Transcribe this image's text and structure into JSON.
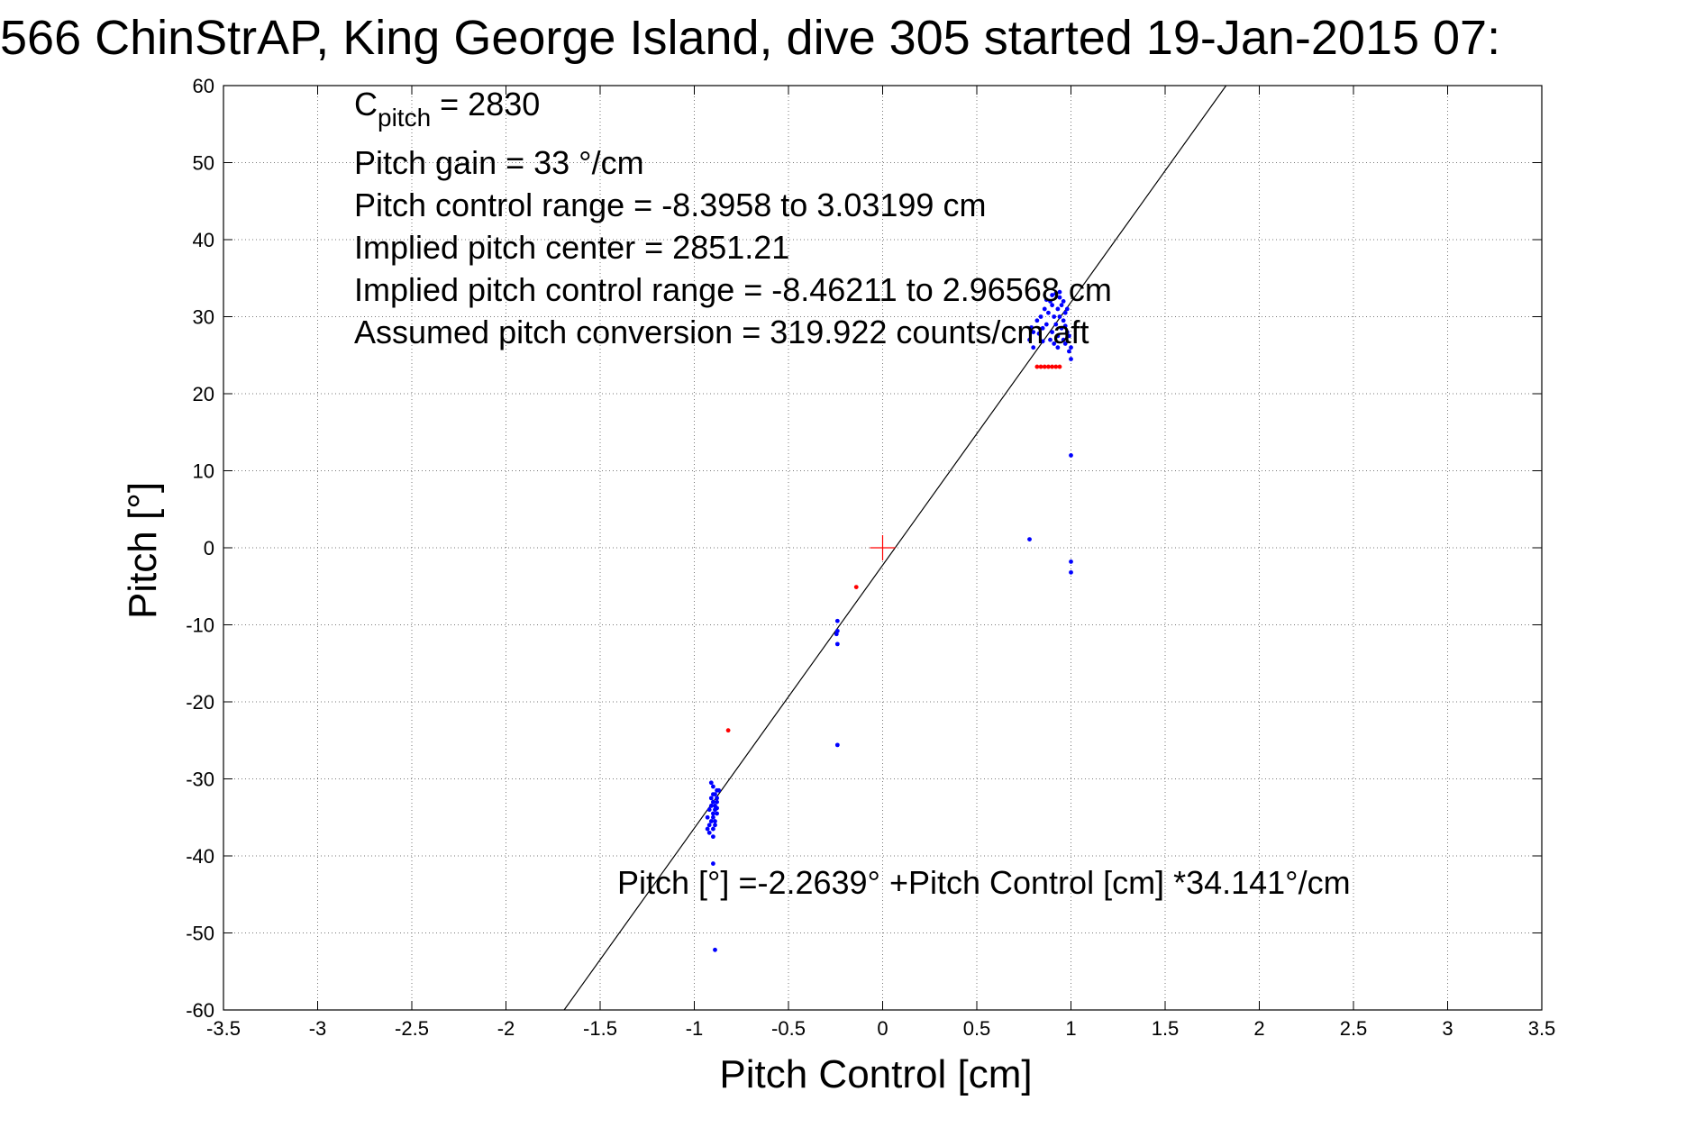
{
  "chart_data": {
    "type": "scatter",
    "title": "566 ChinStrAP, King George Island, dive 305 started 19-Jan-2015 07:",
    "xlabel": "Pitch Control [cm]",
    "ylabel": "Pitch [°]",
    "xlim": [
      -3.5,
      3.5
    ],
    "ylim": [
      -60,
      60
    ],
    "xticks": [
      -3.5,
      -3,
      -2.5,
      -2,
      -1.5,
      -1,
      -0.5,
      0,
      0.5,
      1,
      1.5,
      2,
      2.5,
      3,
      3.5
    ],
    "xtick_labels": [
      "-3.5",
      "-3",
      "-2.5",
      "-2",
      "-1.5",
      "-1",
      "-0.5",
      "0",
      "0.5",
      "1",
      "1.5",
      "2",
      "2.5",
      "3",
      "3.5"
    ],
    "yticks": [
      60,
      50,
      40,
      30,
      20,
      10,
      0,
      -10,
      -20,
      -30,
      -40,
      -50,
      -60
    ],
    "ytick_labels": [
      "60",
      "50",
      "40",
      "30",
      "20",
      "10",
      "0",
      "-10",
      "-20",
      "-30",
      "-40",
      "-50",
      "-60"
    ],
    "grid": true,
    "colors": {
      "good": "#0000ff",
      "bad": "#ff0000",
      "fit": "#000000",
      "center": "#ff0000"
    },
    "annotations": {
      "c_pitch_base": "C",
      "c_pitch_sub": "pitch",
      "c_pitch_value": " = 2830",
      "pitch_gain": "Pitch gain = 33 °/cm",
      "control_range": "Pitch control range = -8.3958 to 3.03199 cm",
      "implied_center": "Implied pitch center = 2851.21",
      "implied_range": "Implied pitch control range = -8.46211 to 2.96568 cm",
      "assumed_conversion": "Assumed pitch conversion = 319.922 counts/cm aft",
      "fit_equation": "Pitch [°] =-2.2639° +Pitch Control [cm] *34.141°/cm"
    },
    "fit": {
      "intercept": -2.2639,
      "slope": 34.141
    },
    "center_marker": {
      "x": 0,
      "y": 0
    },
    "series": [
      {
        "name": "",
        "points": [
          [
            -0.9,
            -31
          ],
          [
            -0.89,
            -32
          ],
          [
            -0.88,
            -31.5
          ],
          [
            -0.91,
            -32.5
          ],
          [
            -0.9,
            -33
          ],
          [
            -0.89,
            -33.5
          ],
          [
            -0.92,
            -34
          ],
          [
            -0.9,
            -34.5
          ],
          [
            -0.88,
            -33
          ],
          [
            -0.93,
            -35
          ],
          [
            -0.91,
            -35.5
          ],
          [
            -0.89,
            -36
          ],
          [
            -0.9,
            -36.5
          ],
          [
            -0.92,
            -37
          ],
          [
            -0.88,
            -32.5
          ],
          [
            -0.9,
            -37.5
          ],
          [
            -0.89,
            -34
          ],
          [
            -0.91,
            -33.5
          ],
          [
            -0.87,
            -31.5
          ],
          [
            -0.9,
            -35
          ],
          [
            -0.88,
            -34.5
          ],
          [
            -0.92,
            -36
          ],
          [
            -0.91,
            -30.5
          ],
          [
            -0.89,
            -35.5
          ],
          [
            -0.9,
            -32
          ],
          [
            -0.93,
            -36.5
          ],
          [
            -0.88,
            -33.8
          ],
          [
            -0.9,
            -41
          ],
          [
            -0.89,
            -52.2
          ],
          [
            -0.24,
            -9.5
          ],
          [
            -0.24,
            -10.8
          ],
          [
            -0.245,
            -11.2
          ],
          [
            -0.24,
            -12.5
          ],
          [
            -0.24,
            -25.6
          ],
          [
            0.78,
            1.1
          ],
          [
            1.0,
            12
          ],
          [
            1.0,
            -1.8
          ],
          [
            1.0,
            -3.2
          ],
          [
            0.78,
            27
          ],
          [
            0.8,
            28
          ],
          [
            0.82,
            29.5
          ],
          [
            0.84,
            30
          ],
          [
            0.85,
            28.5
          ],
          [
            0.86,
            31
          ],
          [
            0.87,
            29
          ],
          [
            0.88,
            30.5
          ],
          [
            0.89,
            32
          ],
          [
            0.9,
            31.5
          ],
          [
            0.9,
            28
          ],
          [
            0.91,
            30
          ],
          [
            0.92,
            33
          ],
          [
            0.92,
            29
          ],
          [
            0.93,
            31
          ],
          [
            0.93,
            27.5
          ],
          [
            0.94,
            32.5
          ],
          [
            0.94,
            30
          ],
          [
            0.95,
            28.5
          ],
          [
            0.95,
            31.5
          ],
          [
            0.96,
            29.5
          ],
          [
            0.96,
            27
          ],
          [
            0.97,
            30.5
          ],
          [
            0.97,
            26.5
          ],
          [
            0.98,
            28
          ],
          [
            0.98,
            31
          ],
          [
            0.99,
            27.5
          ],
          [
            0.99,
            25.5
          ],
          [
            1.0,
            24.5
          ],
          [
            1.0,
            26
          ],
          [
            0.91,
            26.5
          ],
          [
            0.89,
            27
          ],
          [
            0.85,
            26.8
          ],
          [
            0.8,
            26
          ],
          [
            0.83,
            27.8
          ],
          [
            0.94,
            33.2
          ],
          [
            0.9,
            32.8
          ],
          [
            0.96,
            32
          ],
          [
            0.97,
            28.8
          ],
          [
            0.93,
            26
          ],
          [
            0.87,
            32.2
          ],
          [
            0.79,
            28.6
          ]
        ]
      },
      {
        "name": "",
        "points": [
          [
            -0.82,
            -23.7
          ],
          [
            -0.14,
            -5.1
          ],
          [
            0.82,
            23.5
          ],
          [
            0.84,
            23.5
          ],
          [
            0.86,
            23.5
          ],
          [
            0.88,
            23.5
          ],
          [
            0.9,
            23.5
          ],
          [
            0.92,
            23.5
          ],
          [
            0.94,
            23.5
          ]
        ]
      }
    ]
  }
}
